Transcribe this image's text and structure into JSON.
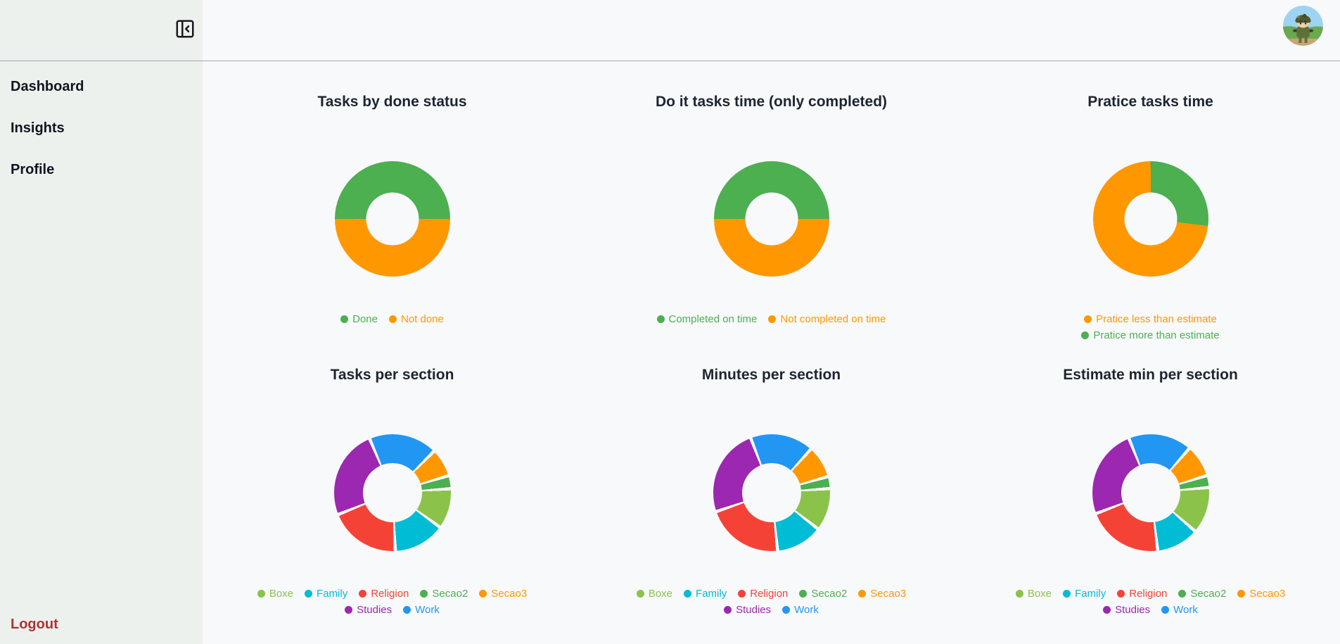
{
  "sidebar": {
    "items": [
      {
        "label": "Dashboard"
      },
      {
        "label": "Insights"
      },
      {
        "label": "Profile"
      }
    ],
    "logout_label": "Logout"
  },
  "header": {
    "collapse_icon": "panel-left-close-icon",
    "avatar_icon": "soldier-avatar"
  },
  "colors": {
    "green": "#4caf50",
    "orange": "#ff9800",
    "blue": "#2196f3",
    "cyan": "#00bcd4",
    "red": "#f44336",
    "purple": "#9c27b0",
    "light_green": "#8bc34a",
    "sidebar_bg": "#edf1ee",
    "main_bg": "#f8f9fb",
    "header_border": "#a2a6b0",
    "title_text": "#1d2530",
    "logout_red": "#ab3434"
  },
  "chart_data": [
    {
      "type": "pie",
      "variant": "donut",
      "title": "Tasks by done status",
      "legend_position": "bottom",
      "rotation_deg": 270,
      "separators": false,
      "legend": [
        {
          "label": "Done",
          "color": "#4caf50"
        },
        {
          "label": "Not done",
          "color": "#ff9800"
        }
      ],
      "segments": [
        {
          "label": "Done",
          "color": "#4caf50",
          "percent": 50
        },
        {
          "label": "Not done",
          "color": "#ff9800",
          "percent": 50
        }
      ]
    },
    {
      "type": "pie",
      "variant": "donut",
      "title": "Do it tasks time (only completed)",
      "legend_position": "bottom",
      "rotation_deg": 270,
      "separators": false,
      "legend": [
        {
          "label": "Completed on time",
          "color": "#4caf50"
        },
        {
          "label": "Not completed on time",
          "color": "#ff9800"
        }
      ],
      "segments": [
        {
          "label": "Completed on time",
          "color": "#4caf50",
          "percent": 50
        },
        {
          "label": "Not completed on time",
          "color": "#ff9800",
          "percent": 50
        }
      ]
    },
    {
      "type": "pie",
      "variant": "donut",
      "title": "Pratice tasks time",
      "legend_position": "bottom",
      "rotation_deg": 97,
      "separators": false,
      "legend": [
        {
          "label": "Pratice less than estimate",
          "color": "#ff9800"
        },
        {
          "label": "Pratice more than estimate",
          "color": "#4caf50"
        }
      ],
      "segments": [
        {
          "label": "Pratice less than estimate",
          "color": "#ff9800",
          "percent": 73
        },
        {
          "label": "Pratice more than estimate",
          "color": "#4caf50",
          "percent": 27
        }
      ]
    },
    {
      "type": "pie",
      "variant": "donut",
      "title": "Tasks per section",
      "legend_position": "bottom",
      "rotation_deg": 337,
      "separators": true,
      "legend": [
        {
          "label": "Boxe",
          "color": "#8bc34a"
        },
        {
          "label": "Family",
          "color": "#00bcd4"
        },
        {
          "label": "Religion",
          "color": "#f44336"
        },
        {
          "label": "Secao2",
          "color": "#4caf50"
        },
        {
          "label": "Secao3",
          "color": "#ff9800"
        },
        {
          "label": "Studies",
          "color": "#9c27b0"
        },
        {
          "label": "Work",
          "color": "#2196f3"
        }
      ],
      "segments": [
        {
          "label": "Work",
          "color": "#2196f3",
          "percent": 18.9
        },
        {
          "label": "Secao3",
          "color": "#ff9800",
          "percent": 7.8
        },
        {
          "label": "Secao2",
          "color": "#4caf50",
          "percent": 3.6
        },
        {
          "label": "Boxe",
          "color": "#8bc34a",
          "percent": 11.1
        },
        {
          "label": "Family",
          "color": "#00bcd4",
          "percent": 14.2
        },
        {
          "label": "Religion",
          "color": "#f44336",
          "percent": 19.7
        },
        {
          "label": "Studies",
          "color": "#9c27b0",
          "percent": 24.7
        }
      ]
    },
    {
      "type": "pie",
      "variant": "donut",
      "title": "Minutes per section",
      "legend_position": "bottom",
      "rotation_deg": 339,
      "separators": true,
      "legend": [
        {
          "label": "Boxe",
          "color": "#8bc34a"
        },
        {
          "label": "Family",
          "color": "#00bcd4"
        },
        {
          "label": "Religion",
          "color": "#f44336"
        },
        {
          "label": "Secao2",
          "color": "#4caf50"
        },
        {
          "label": "Secao3",
          "color": "#ff9800"
        },
        {
          "label": "Studies",
          "color": "#9c27b0"
        },
        {
          "label": "Work",
          "color": "#2196f3"
        }
      ],
      "segments": [
        {
          "label": "Work",
          "color": "#2196f3",
          "percent": 17.5
        },
        {
          "label": "Secao3",
          "color": "#ff9800",
          "percent": 8.9
        },
        {
          "label": "Secao2",
          "color": "#4caf50",
          "percent": 3.3
        },
        {
          "label": "Boxe",
          "color": "#8bc34a",
          "percent": 11.7
        },
        {
          "label": "Family",
          "color": "#00bcd4",
          "percent": 12.8
        },
        {
          "label": "Religion",
          "color": "#f44336",
          "percent": 21.4
        },
        {
          "label": "Studies",
          "color": "#9c27b0",
          "percent": 24.4
        }
      ]
    },
    {
      "type": "pie",
      "variant": "donut",
      "title": "Estimate min per section",
      "legend_position": "bottom",
      "rotation_deg": 338,
      "separators": true,
      "legend": [
        {
          "label": "Boxe",
          "color": "#8bc34a"
        },
        {
          "label": "Family",
          "color": "#00bcd4"
        },
        {
          "label": "Religion",
          "color": "#f44336"
        },
        {
          "label": "Secao2",
          "color": "#4caf50"
        },
        {
          "label": "Secao3",
          "color": "#ff9800"
        },
        {
          "label": "Studies",
          "color": "#9c27b0"
        },
        {
          "label": "Work",
          "color": "#2196f3"
        }
      ],
      "segments": [
        {
          "label": "Work",
          "color": "#2196f3",
          "percent": 17.5
        },
        {
          "label": "Secao3",
          "color": "#ff9800",
          "percent": 8.9
        },
        {
          "label": "Secao2",
          "color": "#4caf50",
          "percent": 3.3
        },
        {
          "label": "Boxe",
          "color": "#8bc34a",
          "percent": 12.8
        },
        {
          "label": "Family",
          "color": "#00bcd4",
          "percent": 11.7
        },
        {
          "label": "Religion",
          "color": "#f44336",
          "percent": 21.1
        },
        {
          "label": "Studies",
          "color": "#9c27b0",
          "percent": 24.7
        }
      ]
    }
  ]
}
